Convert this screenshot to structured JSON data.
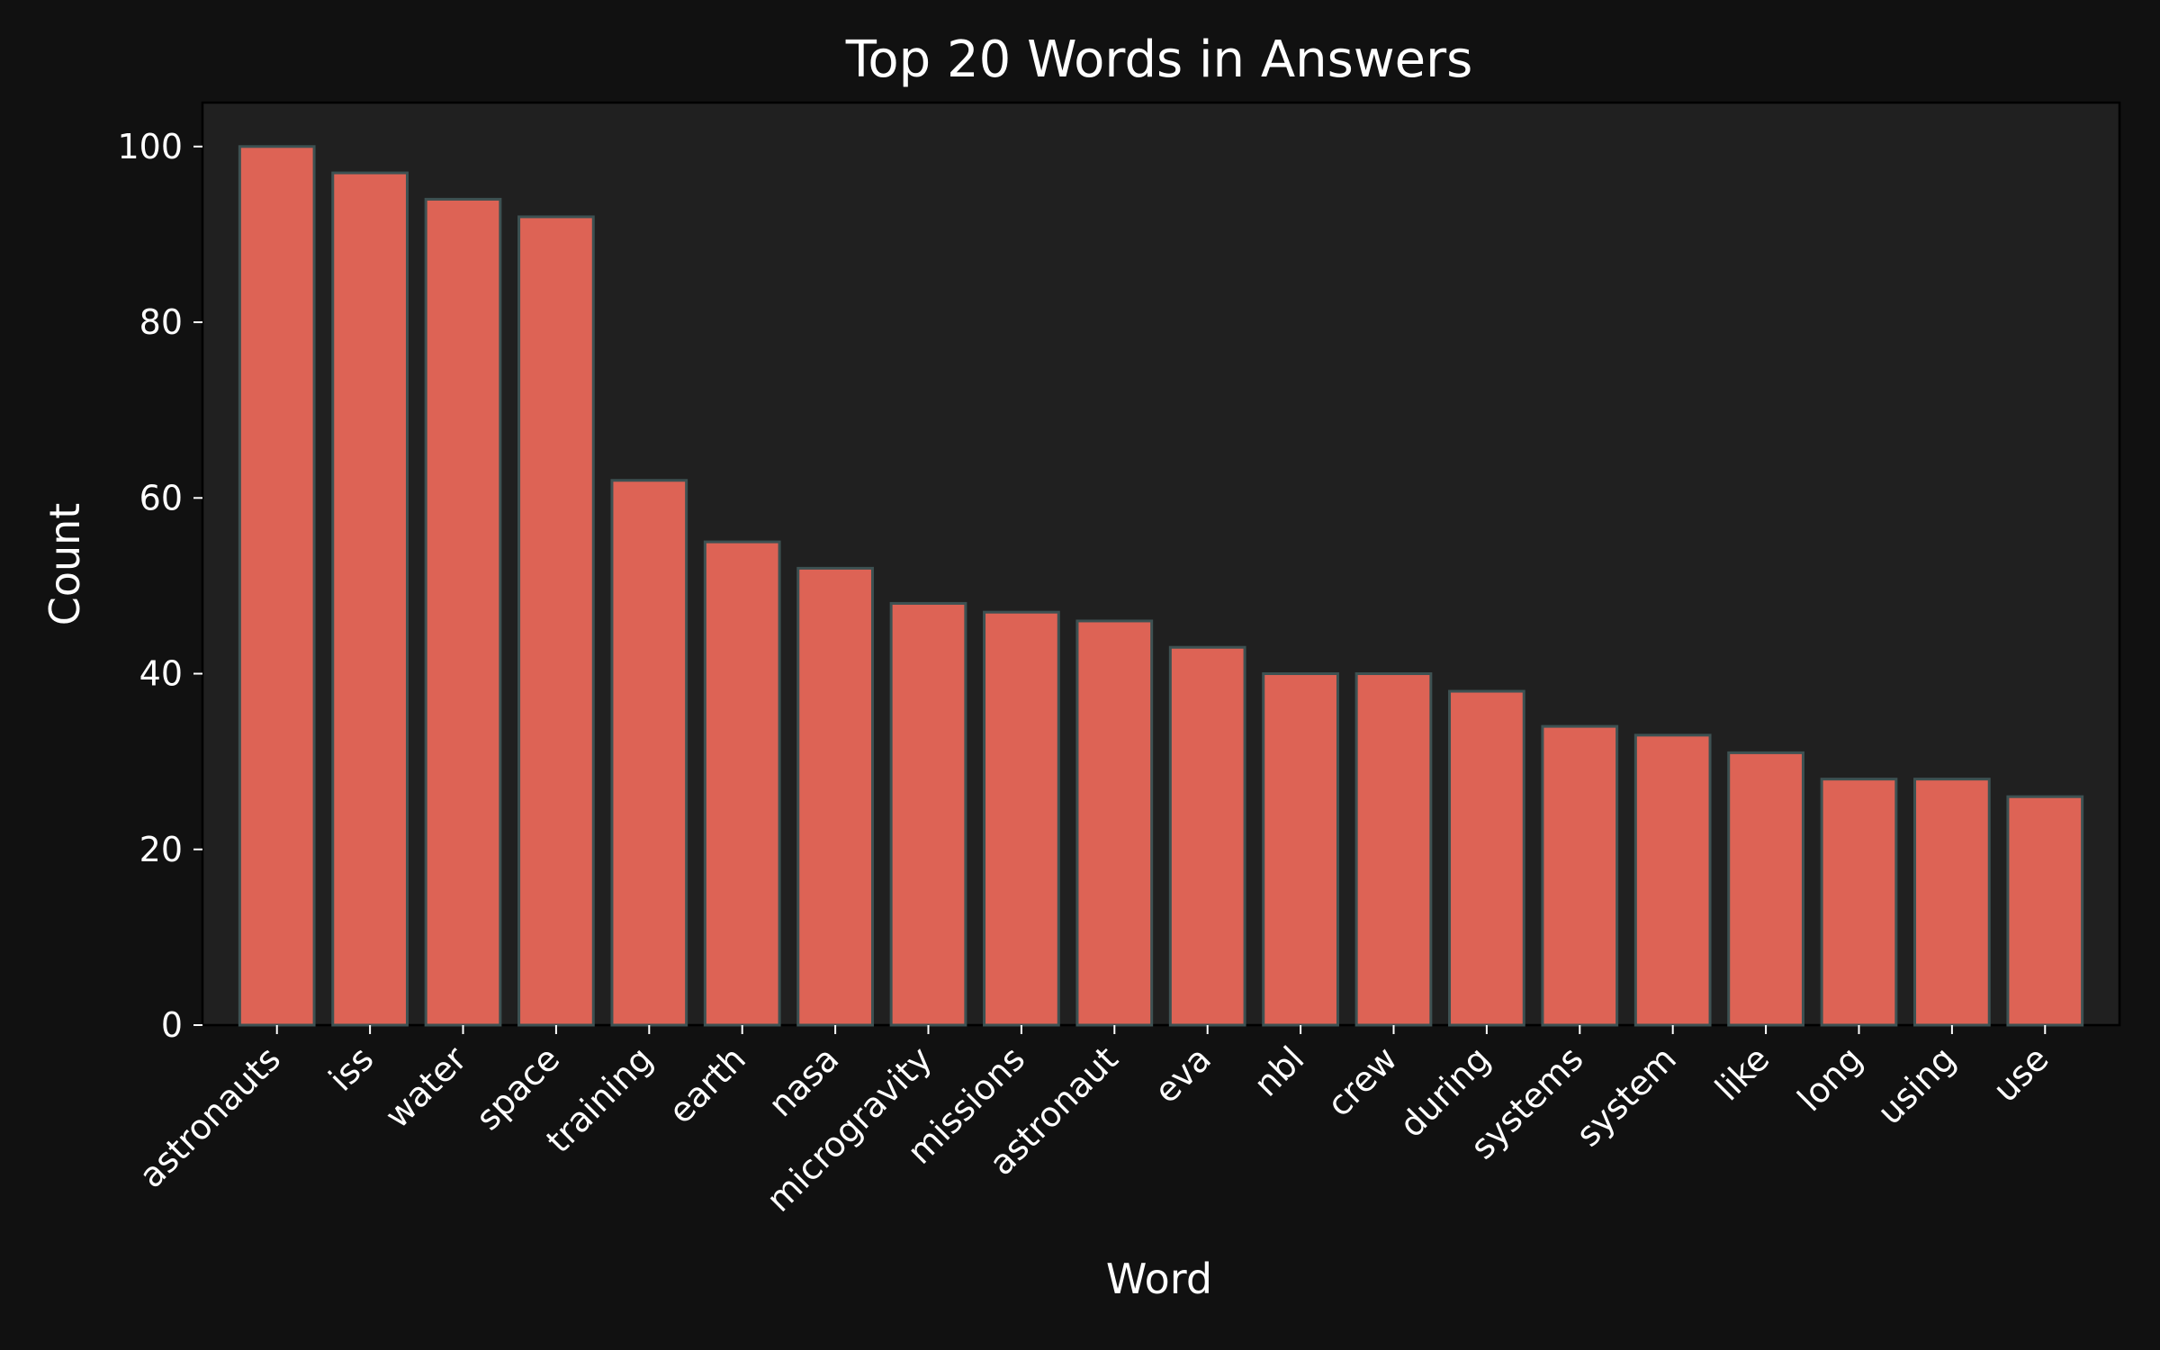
{
  "chart_data": {
    "type": "bar",
    "title": "Top 20 Words in Answers",
    "xlabel": "Word",
    "ylabel": "Count",
    "categories": [
      "astronauts",
      "iss",
      "water",
      "space",
      "training",
      "earth",
      "nasa",
      "microgravity",
      "missions",
      "astronaut",
      "eva",
      "nbl",
      "crew",
      "during",
      "systems",
      "system",
      "like",
      "long",
      "using",
      "use"
    ],
    "values": [
      100,
      97,
      94,
      92,
      62,
      55,
      52,
      48,
      47,
      46,
      43,
      40,
      40,
      38,
      34,
      33,
      31,
      28,
      28,
      26
    ],
    "ylim": [
      0,
      105
    ],
    "yticks": [
      0,
      20,
      40,
      60,
      80,
      100
    ],
    "grid": false,
    "legend": "none",
    "colors": {
      "background": "#111111",
      "plot_background": "#202020",
      "bar_fill": "#dd6355",
      "bar_edge": "#3d5152",
      "text": "#ffffff"
    }
  }
}
